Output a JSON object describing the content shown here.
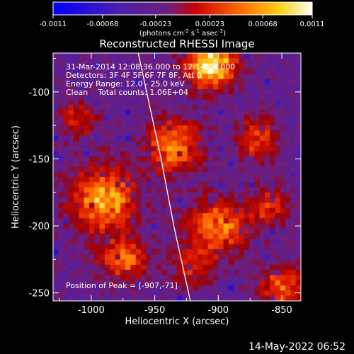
{
  "chart_data": {
    "type": "heatmap",
    "title": "Reconstructed RHESSI Image",
    "xlabel": "Heliocentric X (arcsec)",
    "ylabel": "Heliocentric Y (arcsec)",
    "xlim": [
      -1030,
      -835
    ],
    "ylim": [
      -256,
      -71
    ],
    "x_ticks": [
      "-1000",
      "-950",
      "-900",
      "-850"
    ],
    "x_tick_values": [
      -1000,
      -950,
      -900,
      -850
    ],
    "y_ticks": [
      "-100",
      "-150",
      "-200",
      "-250"
    ],
    "y_tick_values": [
      -100,
      -150,
      -200,
      -250
    ],
    "colorbar": {
      "ticks": [
        "-0.0011",
        "-0.00068",
        "-0.00023",
        "0.00023",
        "0.00068",
        "0.0011"
      ],
      "tick_values": [
        -0.0011,
        -0.00068,
        -0.00023,
        0.00023,
        0.00068,
        0.0011
      ],
      "range": [
        -0.0011,
        0.0011
      ],
      "label_main": "(photons cm",
      "label_exp1": "-2",
      "label_mid": " s",
      "label_exp2": "-1",
      "label_tail": " asec",
      "label_exp3": "-2",
      "label_end": ")",
      "colormap": [
        "#0000ff",
        "#3b2bb0",
        "#6a2a8c",
        "#ff0000",
        "#ff7f00",
        "#ffff40",
        "#ffffff"
      ]
    },
    "annotations": [
      "31-Mar-2014 12:08:36.000 to 12:14:04.000",
      "Detectors: 3F 4F 5F 6F 7F 8F, Att 0",
      "Energy Range: 12.0 - 25.0 keV",
      "Clean    Total counts: 1.06E+04"
    ],
    "peak_label": "Position of Peak = [-907,-71]",
    "peak_position": [
      -907,
      -71
    ],
    "limb_curve": [
      [
        -963,
        -71
      ],
      [
        -945,
        -150
      ],
      [
        -935,
        -200
      ],
      [
        -922,
        -256
      ]
    ],
    "grid": false,
    "sources": [
      {
        "x": -905,
        "y": -80,
        "sx": 14,
        "sy": 12,
        "amp": 1.0
      },
      {
        "x": -990,
        "y": -180,
        "sx": 18,
        "sy": 18,
        "amp": 0.78
      },
      {
        "x": -935,
        "y": -140,
        "sx": 14,
        "sy": 14,
        "amp": 0.72
      },
      {
        "x": -900,
        "y": -200,
        "sx": 17,
        "sy": 14,
        "amp": 0.7
      },
      {
        "x": -975,
        "y": -225,
        "sx": 14,
        "sy": 10,
        "amp": 0.6
      },
      {
        "x": -870,
        "y": -135,
        "sx": 10,
        "sy": 12,
        "amp": 0.55
      },
      {
        "x": -850,
        "y": -245,
        "sx": 12,
        "sy": 10,
        "amp": 0.6
      },
      {
        "x": -1010,
        "y": -120,
        "sx": 10,
        "sy": 10,
        "amp": 0.45
      },
      {
        "x": -920,
        "y": -230,
        "sx": 12,
        "sy": 10,
        "amp": 0.4
      },
      {
        "x": -860,
        "y": -185,
        "sx": 10,
        "sy": 10,
        "amp": 0.45
      }
    ]
  },
  "footer": {
    "date": "14-May-2022 06:52"
  }
}
